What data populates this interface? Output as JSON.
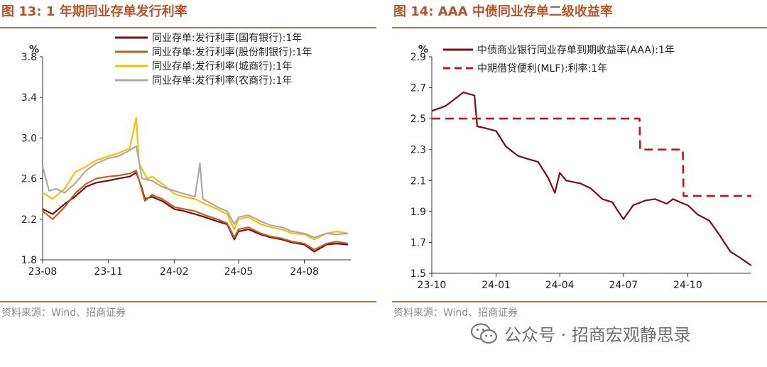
{
  "left": {
    "title": "图 13:  1 年期同业存单发行利率",
    "source": "资料来源：Wind、招商证券"
  },
  "right": {
    "title": "图 14:  AAA 中债同业存单二级收益率",
    "source": "资料来源：Wind、招商证券"
  },
  "watermark": {
    "text": "公众号 · 招商宏观静思录",
    "icon": "wechat-icon"
  },
  "chart_data": [
    {
      "type": "line",
      "title": "1 年期同业存单发行利率",
      "ylabel": "%",
      "ylim": [
        1.8,
        3.8
      ],
      "yticks": [
        "1.8",
        "2.2",
        "2.6",
        "3.0",
        "3.4",
        "3.8"
      ],
      "xlim": [
        "2023-08-01",
        "2024-10-05"
      ],
      "xticks": [
        {
          "date": "2023-08-01",
          "label": "23-08"
        },
        {
          "date": "2023-11-01",
          "label": "23-11"
        },
        {
          "date": "2024-02-01",
          "label": "24-02"
        },
        {
          "date": "2024-05-01",
          "label": "24-05"
        },
        {
          "date": "2024-08-01",
          "label": "24-08"
        }
      ],
      "legend": "top-right",
      "series": [
        {
          "name": "同业存单:发行利率(国有银行):1年",
          "color": "#7b0c12",
          "points": [
            [
              "2023-08-01",
              2.3
            ],
            [
              "2023-08-15",
              2.25
            ],
            [
              "2023-09-01",
              2.35
            ],
            [
              "2023-09-15",
              2.42
            ],
            [
              "2023-10-01",
              2.52
            ],
            [
              "2023-10-15",
              2.56
            ],
            [
              "2023-11-01",
              2.58
            ],
            [
              "2023-11-15",
              2.6
            ],
            [
              "2023-12-01",
              2.62
            ],
            [
              "2023-12-10",
              2.66
            ],
            [
              "2023-12-18",
              2.5
            ],
            [
              "2023-12-22",
              2.4
            ],
            [
              "2024-01-01",
              2.42
            ],
            [
              "2024-01-15",
              2.38
            ],
            [
              "2024-02-01",
              2.3
            ],
            [
              "2024-02-15",
              2.28
            ],
            [
              "2024-03-01",
              2.25
            ],
            [
              "2024-03-15",
              2.22
            ],
            [
              "2024-04-01",
              2.18
            ],
            [
              "2024-04-15",
              2.15
            ],
            [
              "2024-04-25",
              2.0
            ],
            [
              "2024-05-01",
              2.08
            ],
            [
              "2024-05-15",
              2.1
            ],
            [
              "2024-06-01",
              2.05
            ],
            [
              "2024-06-15",
              2.02
            ],
            [
              "2024-07-01",
              2.0
            ],
            [
              "2024-07-15",
              1.97
            ],
            [
              "2024-08-01",
              1.95
            ],
            [
              "2024-08-15",
              1.88
            ],
            [
              "2024-09-01",
              1.95
            ],
            [
              "2024-09-15",
              1.96
            ],
            [
              "2024-10-01",
              1.95
            ]
          ]
        },
        {
          "name": "同业存单:发行利率(股份制银行):1年",
          "color": "#b8651c",
          "points": [
            [
              "2023-08-01",
              2.28
            ],
            [
              "2023-08-15",
              2.2
            ],
            [
              "2023-09-01",
              2.32
            ],
            [
              "2023-09-15",
              2.45
            ],
            [
              "2023-10-01",
              2.55
            ],
            [
              "2023-10-15",
              2.6
            ],
            [
              "2023-11-01",
              2.62
            ],
            [
              "2023-11-15",
              2.63
            ],
            [
              "2023-12-01",
              2.65
            ],
            [
              "2023-12-10",
              2.68
            ],
            [
              "2023-12-18",
              2.48
            ],
            [
              "2023-12-22",
              2.38
            ],
            [
              "2024-01-01",
              2.44
            ],
            [
              "2024-01-15",
              2.4
            ],
            [
              "2024-02-01",
              2.32
            ],
            [
              "2024-02-15",
              2.3
            ],
            [
              "2024-03-01",
              2.28
            ],
            [
              "2024-03-15",
              2.24
            ],
            [
              "2024-04-01",
              2.2
            ],
            [
              "2024-04-15",
              2.16
            ],
            [
              "2024-04-25",
              2.02
            ],
            [
              "2024-05-01",
              2.1
            ],
            [
              "2024-05-15",
              2.12
            ],
            [
              "2024-06-01",
              2.06
            ],
            [
              "2024-06-15",
              2.03
            ],
            [
              "2024-07-01",
              2.01
            ],
            [
              "2024-07-15",
              1.98
            ],
            [
              "2024-08-01",
              1.96
            ],
            [
              "2024-08-15",
              1.9
            ],
            [
              "2024-09-01",
              1.96
            ],
            [
              "2024-09-15",
              1.98
            ],
            [
              "2024-10-01",
              1.96
            ]
          ]
        },
        {
          "name": "同业存单:发行利率(城商行):1年",
          "color": "#f5c000",
          "points": [
            [
              "2023-08-01",
              2.46
            ],
            [
              "2023-08-15",
              2.4
            ],
            [
              "2023-09-01",
              2.5
            ],
            [
              "2023-09-15",
              2.66
            ],
            [
              "2023-10-01",
              2.72
            ],
            [
              "2023-10-15",
              2.78
            ],
            [
              "2023-11-01",
              2.82
            ],
            [
              "2023-11-15",
              2.85
            ],
            [
              "2023-12-01",
              2.9
            ],
            [
              "2023-12-10",
              3.2
            ],
            [
              "2023-12-14",
              2.75
            ],
            [
              "2023-12-25",
              2.6
            ],
            [
              "2024-01-01",
              2.62
            ],
            [
              "2024-01-15",
              2.55
            ],
            [
              "2024-02-01",
              2.45
            ],
            [
              "2024-02-15",
              2.42
            ],
            [
              "2024-03-01",
              2.4
            ],
            [
              "2024-03-15",
              2.35
            ],
            [
              "2024-04-01",
              2.3
            ],
            [
              "2024-04-15",
              2.25
            ],
            [
              "2024-04-25",
              2.1
            ],
            [
              "2024-05-01",
              2.2
            ],
            [
              "2024-05-15",
              2.22
            ],
            [
              "2024-06-01",
              2.15
            ],
            [
              "2024-06-15",
              2.12
            ],
            [
              "2024-07-01",
              2.1
            ],
            [
              "2024-07-15",
              2.06
            ],
            [
              "2024-08-01",
              2.05
            ],
            [
              "2024-08-15",
              2.0
            ],
            [
              "2024-09-01",
              2.06
            ],
            [
              "2024-09-15",
              2.08
            ],
            [
              "2024-10-01",
              2.06
            ]
          ]
        },
        {
          "name": "同业存单:发行利率(农商行):1年",
          "color": "#a9a9a9",
          "points": [
            [
              "2023-08-01",
              2.72
            ],
            [
              "2023-08-10",
              2.48
            ],
            [
              "2023-08-20",
              2.5
            ],
            [
              "2023-09-01",
              2.46
            ],
            [
              "2023-09-15",
              2.55
            ],
            [
              "2023-10-01",
              2.68
            ],
            [
              "2023-10-15",
              2.75
            ],
            [
              "2023-11-01",
              2.8
            ],
            [
              "2023-11-15",
              2.82
            ],
            [
              "2023-12-01",
              2.88
            ],
            [
              "2023-12-10",
              2.92
            ],
            [
              "2023-12-18",
              2.6
            ],
            [
              "2024-01-01",
              2.58
            ],
            [
              "2024-01-15",
              2.52
            ],
            [
              "2024-02-01",
              2.48
            ],
            [
              "2024-02-15",
              2.45
            ],
            [
              "2024-03-01",
              2.42
            ],
            [
              "2024-03-08",
              2.75
            ],
            [
              "2024-03-12",
              2.4
            ],
            [
              "2024-03-25",
              2.35
            ],
            [
              "2024-04-01",
              2.32
            ],
            [
              "2024-04-15",
              2.28
            ],
            [
              "2024-04-25",
              2.15
            ],
            [
              "2024-05-01",
              2.22
            ],
            [
              "2024-05-15",
              2.24
            ],
            [
              "2024-06-01",
              2.18
            ],
            [
              "2024-06-15",
              2.14
            ],
            [
              "2024-07-01",
              2.12
            ],
            [
              "2024-07-15",
              2.08
            ],
            [
              "2024-08-01",
              2.06
            ],
            [
              "2024-08-15",
              2.02
            ],
            [
              "2024-09-01",
              2.06
            ],
            [
              "2024-09-15",
              2.05
            ],
            [
              "2024-10-01",
              2.06
            ]
          ]
        }
      ]
    },
    {
      "type": "line",
      "title": "AAA 中债同业存单二级收益率",
      "ylabel": "%",
      "ylim": [
        1.5,
        2.9
      ],
      "yticks": [
        "1.5",
        "1.7",
        "1.9",
        "2.1",
        "2.3",
        "2.5",
        "2.7",
        "2.9"
      ],
      "xlim": [
        "2023-10-01",
        "2024-12-31"
      ],
      "xticks": [
        {
          "date": "2023-10-01",
          "label": "23-10"
        },
        {
          "date": "2024-01-01",
          "label": "24-01"
        },
        {
          "date": "2024-04-01",
          "label": "24-04"
        },
        {
          "date": "2024-07-01",
          "label": "24-07"
        },
        {
          "date": "2024-10-01",
          "label": "24-10"
        }
      ],
      "legend": "top-left",
      "series": [
        {
          "name": "中债商业银行同业存单到期收益率(AAA):1年",
          "color": "#7b0c12",
          "dash": false,
          "points": [
            [
              "2023-10-01",
              2.55
            ],
            [
              "2023-10-20",
              2.58
            ],
            [
              "2023-11-01",
              2.62
            ],
            [
              "2023-11-15",
              2.67
            ],
            [
              "2023-12-01",
              2.65
            ],
            [
              "2023-12-05",
              2.45
            ],
            [
              "2023-12-15",
              2.44
            ],
            [
              "2024-01-01",
              2.42
            ],
            [
              "2024-01-15",
              2.32
            ],
            [
              "2024-02-01",
              2.26
            ],
            [
              "2024-02-15",
              2.24
            ],
            [
              "2024-03-01",
              2.22
            ],
            [
              "2024-03-15",
              2.12
            ],
            [
              "2024-03-25",
              2.02
            ],
            [
              "2024-04-01",
              2.15
            ],
            [
              "2024-04-10",
              2.1
            ],
            [
              "2024-05-01",
              2.08
            ],
            [
              "2024-05-15",
              2.05
            ],
            [
              "2024-06-01",
              1.98
            ],
            [
              "2024-06-15",
              1.96
            ],
            [
              "2024-07-01",
              1.85
            ],
            [
              "2024-07-15",
              1.94
            ],
            [
              "2024-08-01",
              1.97
            ],
            [
              "2024-08-15",
              1.98
            ],
            [
              "2024-09-01",
              1.95
            ],
            [
              "2024-09-10",
              1.98
            ],
            [
              "2024-09-25",
              1.95
            ],
            [
              "2024-10-01",
              1.94
            ],
            [
              "2024-10-15",
              1.88
            ],
            [
              "2024-11-01",
              1.84
            ],
            [
              "2024-11-15",
              1.75
            ],
            [
              "2024-12-01",
              1.64
            ],
            [
              "2024-12-15",
              1.6
            ],
            [
              "2024-12-31",
              1.55
            ]
          ]
        },
        {
          "name": "中期借贷便利(MLF):利率:1年",
          "color": "#c2141c",
          "dash": true,
          "points": [
            [
              "2023-10-01",
              2.5
            ],
            [
              "2024-07-24",
              2.5
            ],
            [
              "2024-07-25",
              2.3
            ],
            [
              "2024-09-24",
              2.3
            ],
            [
              "2024-09-25",
              2.0
            ],
            [
              "2024-12-31",
              2.0
            ]
          ]
        }
      ]
    }
  ]
}
